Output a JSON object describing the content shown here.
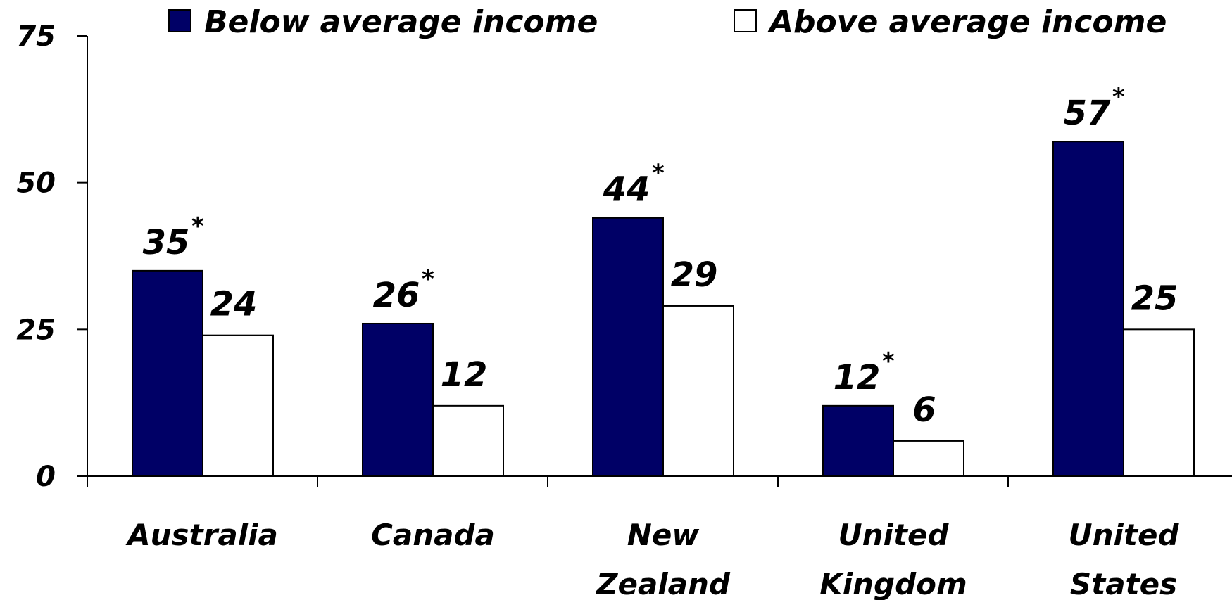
{
  "chart_data": {
    "type": "bar",
    "categories": [
      [
        "Australia"
      ],
      [
        "Canada"
      ],
      [
        "New",
        "Zealand"
      ],
      [
        "United",
        "Kingdom"
      ],
      [
        "United",
        "States"
      ]
    ],
    "series": [
      {
        "name": "Below average income",
        "values": [
          35,
          26,
          44,
          12,
          57
        ],
        "labels": [
          "35",
          "26",
          "44",
          "12",
          "57"
        ],
        "significance_marker": "*",
        "color": "#000066"
      },
      {
        "name": "Above average income",
        "values": [
          24,
          12,
          29,
          6,
          25
        ],
        "labels": [
          "24",
          "12",
          "29",
          "6",
          "25"
        ],
        "color": "#ffffff"
      }
    ],
    "y_ticks": [
      "0",
      "25",
      "50",
      "75"
    ],
    "ylim": [
      0,
      75
    ],
    "grid": false,
    "legend": "top",
    "title": "",
    "xlabel": "",
    "ylabel": ""
  }
}
